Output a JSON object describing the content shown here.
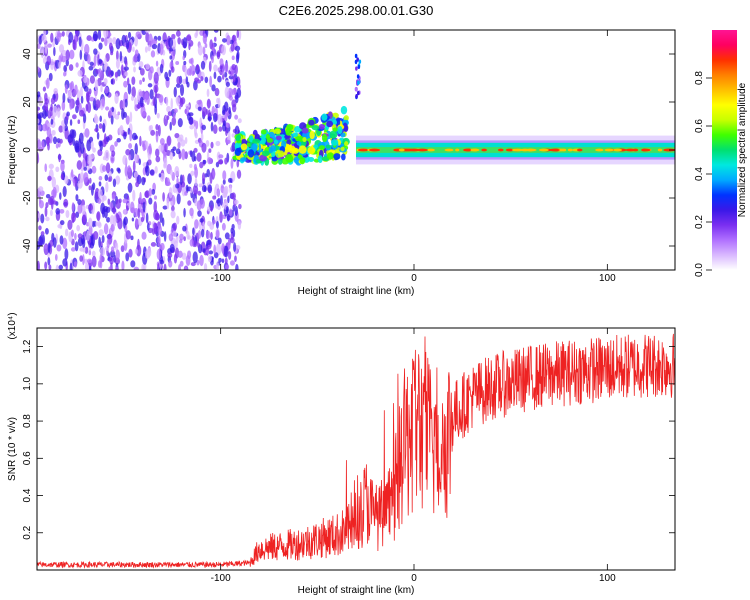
{
  "title": "C2E6.2025.298.00.01.G30",
  "chart_data": [
    {
      "type": "heatmap",
      "title": "C2E6.2025.298.00.01.G30",
      "xlabel": "Height of straight line (km)",
      "ylabel": "Frequency (Hz)",
      "xlim": [
        -195,
        135
      ],
      "ylim": [
        -50,
        50
      ],
      "x_ticks": [
        -100,
        0,
        100
      ],
      "x_tick_labels": [
        "-100",
        "0",
        "100"
      ],
      "y_ticks": [
        -40,
        -20,
        0,
        20,
        40
      ],
      "y_tick_labels": [
        "-40",
        "-20",
        "0",
        "20",
        "40"
      ],
      "colorbar": {
        "label": "Normalized spectral amplitude",
        "range": [
          0,
          1
        ],
        "ticks": [
          0.0,
          0.2,
          0.4,
          0.6,
          0.8
        ],
        "tick_labels": [
          "0.0",
          "0.2",
          "0.4",
          "0.6",
          "0.8"
        ],
        "colormap": [
          "#ffffff",
          "#d9b8ff",
          "#b070ff",
          "#7a2ff0",
          "#3a18e8",
          "#0033ff",
          "#00aaff",
          "#00e8e0",
          "#00e070",
          "#40ff00",
          "#c8ff00",
          "#ffff00",
          "#ffc000",
          "#ff8000",
          "#ff3000",
          "#ff0060",
          "#ff1493"
        ]
      },
      "regions": [
        {
          "name": "noise",
          "x": [
            -195,
            -90
          ],
          "y": [
            -50,
            50
          ],
          "level": 0.25
        },
        {
          "name": "transition",
          "x": [
            -92,
            -35
          ],
          "y": [
            -8,
            12
          ],
          "level": 0.5
        },
        {
          "name": "spike",
          "x": [
            -30,
            -28
          ],
          "y": [
            22,
            40
          ],
          "level": 0.3
        },
        {
          "name": "tone",
          "x": [
            -30,
            135
          ],
          "y": [
            -3,
            3
          ],
          "level": 0.7
        }
      ]
    },
    {
      "type": "line",
      "xlabel": "Height of straight line (km)",
      "ylabel": "SNR (10 * v/v)",
      "exponent_label": "(x10⁴)",
      "xlim": [
        -195,
        135
      ],
      "ylim": [
        0,
        1.3
      ],
      "x_ticks": [
        -100,
        0,
        100
      ],
      "x_tick_labels": [
        "-100",
        "0",
        "100"
      ],
      "y_ticks": [
        0.2,
        0.4,
        0.6,
        0.8,
        1.0,
        1.2
      ],
      "y_tick_labels": [
        "0.2",
        "0.4",
        "0.6",
        "0.8",
        "1.0",
        "1.2"
      ],
      "color": "#ee2222",
      "series": [
        {
          "name": "SNR",
          "x": [
            -195,
            -150,
            -100,
            -85,
            -80,
            -60,
            -40,
            -30,
            -25,
            -20,
            -15,
            -10,
            -5,
            0,
            5,
            10,
            15,
            20,
            30,
            40,
            60,
            80,
            100,
            120,
            135
          ],
          "y": [
            0.03,
            0.03,
            0.03,
            0.04,
            0.12,
            0.15,
            0.2,
            0.25,
            0.4,
            0.3,
            0.3,
            0.45,
            0.7,
            0.85,
            0.8,
            0.72,
            0.7,
            0.85,
            0.95,
            1.0,
            1.05,
            1.08,
            1.1,
            1.12,
            1.12
          ]
        }
      ]
    }
  ]
}
